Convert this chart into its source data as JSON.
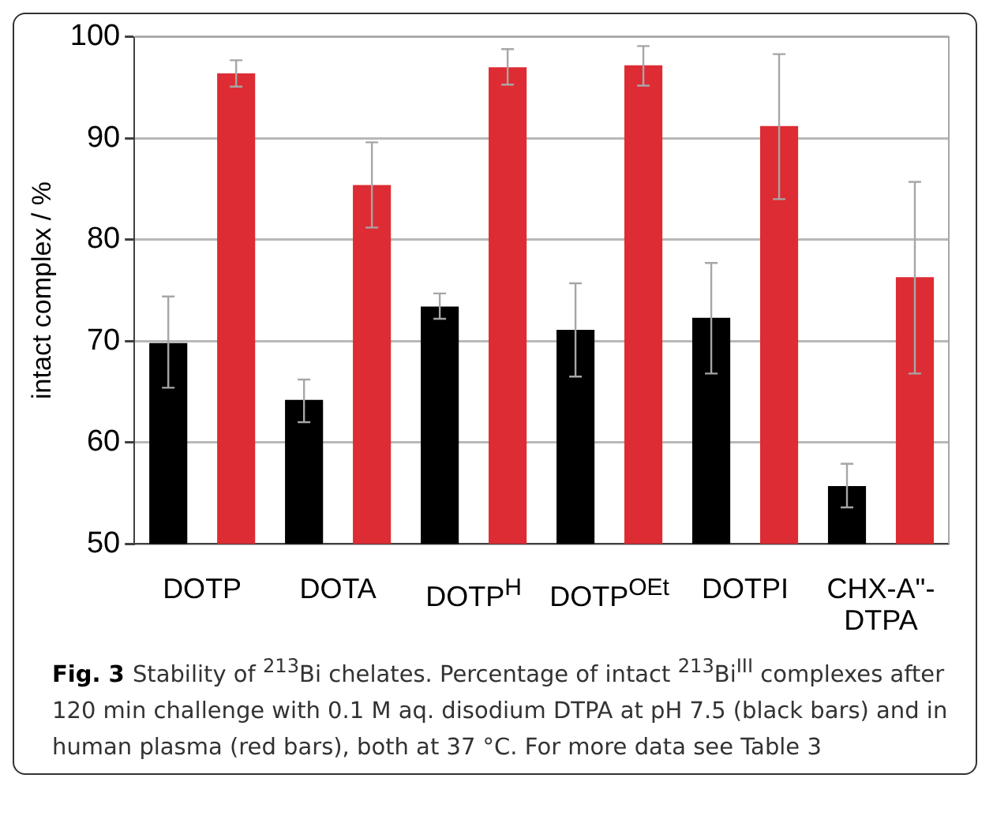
{
  "chart_data": {
    "type": "bar",
    "categories": [
      "DOTP",
      "DOTA",
      "DOTP$^{H}$",
      "DOTP$^{OEt}$",
      "DOTPI",
      "CHX-A\"-DTPA"
    ],
    "series": [
      {
        "color": "#000000",
        "values": [
          69.8,
          64.2,
          73.4,
          71.1,
          72.3,
          55.7
        ],
        "errors": [
          [
            65.4,
            74.4
          ],
          [
            62.0,
            66.2
          ],
          [
            72.2,
            74.7
          ],
          [
            66.5,
            75.7
          ],
          [
            66.8,
            77.7
          ],
          [
            53.6,
            57.9
          ]
        ]
      },
      {
        "color": "#dd2c33",
        "values": [
          96.4,
          85.4,
          97.0,
          97.2,
          91.2,
          76.3
        ],
        "errors": [
          [
            95.1,
            97.7
          ],
          [
            81.2,
            89.6
          ],
          [
            95.3,
            98.8
          ],
          [
            95.2,
            99.1
          ],
          [
            84.0,
            98.3
          ],
          [
            66.8,
            85.7
          ]
        ]
      }
    ],
    "ylabel": "intact complex / %",
    "ylim": [
      50,
      100
    ],
    "yticks": [
      50,
      60,
      70,
      80,
      90,
      100
    ],
    "grid": "y",
    "legend": false,
    "annotations": [
      "Fig. 3",
      "Stability of $^{213}$Bi chelates. Percentage of intact $^{213}$Bi$^{III}$ complexes after 120 min challenge with 0.1 M aq. disodium DTPA at pH 7.5 (black bars) and in human plasma (red bars), both at 37 °C. For more data see Table 3"
    ]
  }
}
